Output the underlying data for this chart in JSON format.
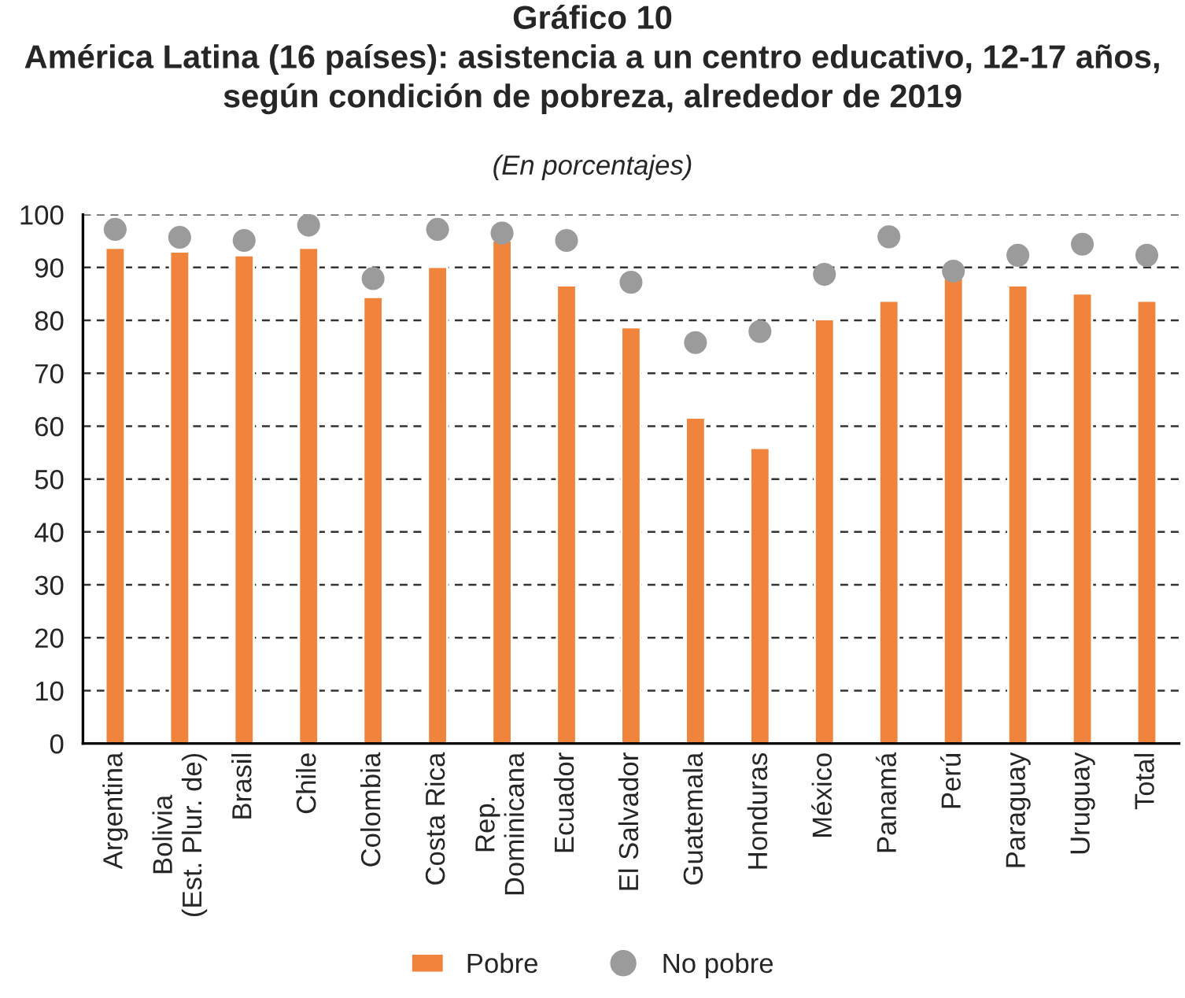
{
  "chart_data": {
    "type": "bar",
    "title": "Gráfico 10\nAmérica Latina (16 países): asistencia a un centro educativo, 12-17 años,\nsegún condición de pobreza, alrededor de 2019",
    "subtitle": "(En porcentajes)",
    "categories": [
      "Argentina",
      "Bolivia\n(Est. Plur. de)",
      "Brasil",
      "Chile",
      "Colombia",
      "Costa Rica",
      "Rep.\nDominicana",
      "Ecuador",
      "El Salvador",
      "Guatemala",
      "Honduras",
      "México",
      "Panamá",
      "Perú",
      "Paraguay",
      "Uruguay",
      "Total"
    ],
    "series": [
      {
        "name": "Pobre",
        "color": "#f0843c",
        "values": [
          93.7,
          93.0,
          92.3,
          93.7,
          84.4,
          90.1,
          95.1,
          86.6,
          78.7,
          61.6,
          55.9,
          80.2,
          83.7,
          90.1,
          86.6,
          85.1,
          83.7
        ]
      },
      {
        "name": "No pobre",
        "type": "scatter",
        "color": "#9b9b9b",
        "marker": "circle",
        "values": [
          97.2,
          95.7,
          95.1,
          98.0,
          87.9,
          97.2,
          96.5,
          95.1,
          87.2,
          75.8,
          77.9,
          88.7,
          95.8,
          89.3,
          92.3,
          94.4,
          92.3
        ]
      }
    ],
    "ylim": [
      0,
      100
    ],
    "yticks": [
      0,
      10,
      20,
      30,
      40,
      50,
      60,
      70,
      80,
      90,
      100
    ],
    "grid": "y",
    "legend": "bottom"
  }
}
